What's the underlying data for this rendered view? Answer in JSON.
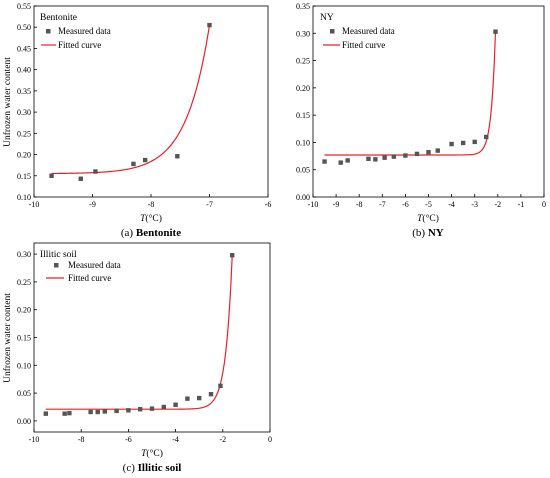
{
  "colors": {
    "marker": "#555555",
    "curve": "#e8202a",
    "axis": "#000000"
  },
  "chart_data": [
    {
      "id": "bentonite",
      "type": "scatter",
      "title": "Bentonite",
      "caption_label": "(a)",
      "caption_name": "Bentonite",
      "xlabel_italic": "T",
      "xlabel_rest": "(°C)",
      "ylabel": "Unfrozen water content",
      "xlim": [
        -10,
        -6
      ],
      "ylim": [
        0.1,
        0.55
      ],
      "xticks": [
        -10,
        -9,
        -8,
        -7,
        -6
      ],
      "yticks": [
        0.1,
        0.15,
        0.2,
        0.25,
        0.3,
        0.35,
        0.4,
        0.45,
        0.5,
        0.55
      ],
      "xdecimals": 0,
      "ydecimals": 2,
      "legend": [
        "Measured data",
        "Fitted curve"
      ],
      "legend_position": "top-left",
      "series": [
        {
          "name": "Measured data",
          "x": [
            -9.7,
            -9.2,
            -8.95,
            -8.3,
            -8.1,
            -7.55,
            -7.0
          ],
          "y": [
            0.15,
            0.143,
            0.16,
            0.178,
            0.187,
            0.196,
            0.505
          ]
        }
      ],
      "fit": {
        "x_start": -9.7,
        "x_end": -7.0,
        "base": 0.155,
        "amp": 0.35,
        "k": 2.5,
        "x0": -7.0
      }
    },
    {
      "id": "ny",
      "type": "scatter",
      "title": "NY",
      "caption_label": "(b)",
      "caption_name": "NY",
      "xlabel_italic": "T",
      "xlabel_rest": "(°C)",
      "ylabel": "",
      "xlim": [
        -10,
        0
      ],
      "ylim": [
        0.0,
        0.35
      ],
      "xticks": [
        -10,
        -9,
        -8,
        -7,
        -6,
        -5,
        -4,
        -3,
        -2,
        -1,
        0
      ],
      "yticks": [
        0.0,
        0.05,
        0.1,
        0.15,
        0.2,
        0.25,
        0.3,
        0.35
      ],
      "xdecimals": 0,
      "ydecimals": 2,
      "legend": [
        "Measured data",
        "Fitted curve"
      ],
      "legend_position": "top-left",
      "series": [
        {
          "name": "Measured data",
          "x": [
            -9.5,
            -8.8,
            -8.5,
            -7.6,
            -7.3,
            -6.9,
            -6.5,
            -6.0,
            -5.5,
            -5.0,
            -4.6,
            -4.0,
            -3.5,
            -3.0,
            -2.5,
            -2.1
          ],
          "y": [
            0.065,
            0.063,
            0.067,
            0.07,
            0.069,
            0.072,
            0.074,
            0.076,
            0.079,
            0.082,
            0.085,
            0.097,
            0.099,
            0.101,
            0.11,
            0.303
          ]
        }
      ],
      "fit": {
        "x_start": -9.5,
        "x_end": -2.1,
        "base": 0.077,
        "amp": 0.226,
        "k": 5.5,
        "x0": -2.1
      }
    },
    {
      "id": "illitic",
      "type": "scatter",
      "title": "Illitic soil",
      "caption_label": "(c)",
      "caption_name": "Illitic soil",
      "xlabel_italic": "T",
      "xlabel_rest": "(°C)",
      "ylabel": "Unfrozen water content",
      "xlim": [
        -10,
        0
      ],
      "ylim": [
        -0.02,
        0.32
      ],
      "xticks": [
        -10,
        -8,
        -6,
        -4,
        -2,
        0
      ],
      "yticks": [
        0.0,
        0.05,
        0.1,
        0.15,
        0.2,
        0.25,
        0.3
      ],
      "xdecimals": 0,
      "ydecimals": 2,
      "legend": [
        "Measured data",
        "Fitted curve"
      ],
      "legend_position": "top-left",
      "series": [
        {
          "name": "Measured data",
          "x": [
            -9.5,
            -8.7,
            -8.5,
            -7.6,
            -7.3,
            -7.0,
            -6.5,
            -6.0,
            -5.5,
            -5.0,
            -4.5,
            -4.0,
            -3.5,
            -3.0,
            -2.5,
            -2.1,
            -1.6
          ],
          "y": [
            0.013,
            0.013,
            0.014,
            0.016,
            0.016,
            0.017,
            0.018,
            0.019,
            0.021,
            0.022,
            0.025,
            0.029,
            0.04,
            0.041,
            0.048,
            0.063,
            0.298
          ]
        }
      ],
      "fit": {
        "x_start": -9.5,
        "x_end": -1.6,
        "base": 0.021,
        "amp": 0.277,
        "k": 3.6,
        "x0": -1.6
      }
    }
  ]
}
